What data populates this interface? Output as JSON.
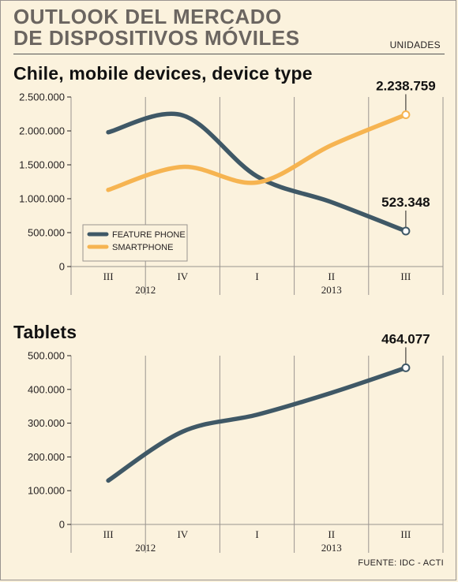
{
  "header": {
    "title_line1": "OUTLOOK DEL MERCADO",
    "title_line2": "DE DISPOSITIVOS MÓVILES",
    "units": "UNIDADES"
  },
  "footer": {
    "source": "FUENTE: IDC - ACTI"
  },
  "colors": {
    "background": "#fbf2dd",
    "feature_phone": "#3f5866",
    "smartphone": "#f6b451",
    "tablets": "#3f5866",
    "grid": "#9a9490"
  },
  "chart_data": [
    {
      "type": "line",
      "title": "Chile, mobile devices, device type",
      "x": [
        "III",
        "IV",
        "I",
        "II",
        "III"
      ],
      "x_groups": [
        {
          "label": "2012",
          "span": [
            0,
            1
          ]
        },
        {
          "label": "2013",
          "span": [
            2,
            4
          ]
        }
      ],
      "series": [
        {
          "name": "FEATURE PHONE",
          "color": "#3f5866",
          "values": [
            1980000,
            2230000,
            1330000,
            950000,
            523348
          ]
        },
        {
          "name": "SMARTPHONE",
          "color": "#f6b451",
          "values": [
            1130000,
            1470000,
            1240000,
            1790000,
            2238759
          ]
        }
      ],
      "ylim": [
        0,
        2500000
      ],
      "yticks": [
        0,
        500000,
        1000000,
        1500000,
        2000000,
        2500000
      ],
      "ytick_labels": [
        "0",
        "500.000",
        "1.000.000",
        "1.500.000",
        "2.000.000",
        "2.500.000"
      ],
      "annotations": [
        {
          "series": 1,
          "index": 4,
          "text": "2.238.759"
        },
        {
          "series": 0,
          "index": 4,
          "text": "523.348"
        }
      ],
      "legend": "bottom-left",
      "grid": "vertical"
    },
    {
      "type": "line",
      "title": "Tablets",
      "x": [
        "III",
        "IV",
        "I",
        "II",
        "III"
      ],
      "x_groups": [
        {
          "label": "2012",
          "span": [
            0,
            1
          ]
        },
        {
          "label": "2013",
          "span": [
            2,
            4
          ]
        }
      ],
      "series": [
        {
          "color": "#3f5866",
          "values": [
            130000,
            275000,
            325000,
            390000,
            464077
          ]
        }
      ],
      "ylim": [
        0,
        500000
      ],
      "yticks": [
        0,
        100000,
        200000,
        300000,
        400000,
        500000
      ],
      "ytick_labels": [
        "0",
        "100.000",
        "200.000",
        "300.000",
        "400.000",
        "500.000"
      ],
      "annotations": [
        {
          "series": 0,
          "index": 4,
          "text": "464.077"
        }
      ],
      "grid": "vertical"
    }
  ]
}
